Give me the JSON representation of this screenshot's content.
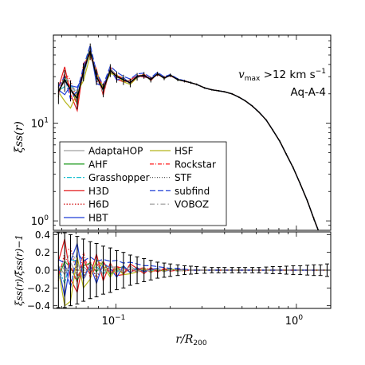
{
  "chart_data": [
    {
      "type": "line",
      "panel": "top",
      "annotation": {
        "prefix": "v",
        "sub": "max",
        "rest": " >12 km s",
        "sup": "−1",
        "name": "Aq-A-4"
      },
      "ylabel": "ξss(r)",
      "xscale": "log",
      "yscale": "log",
      "xlim": [
        0.045,
        1.55
      ],
      "ylim": [
        0.8,
        80
      ],
      "ytick_labels": [
        {
          "v": 10,
          "t": "10"
        },
        {
          "v": 1,
          "t": "10"
        }
      ],
      "ytick_exps": [
        "1",
        "0"
      ],
      "legend_position": "bottom-left",
      "x": [
        0.048,
        0.052,
        0.056,
        0.061,
        0.066,
        0.072,
        0.078,
        0.085,
        0.093,
        0.101,
        0.11,
        0.12,
        0.131,
        0.143,
        0.156,
        0.17,
        0.185,
        0.2,
        0.22,
        0.24,
        0.26,
        0.28,
        0.31,
        0.34,
        0.37,
        0.4,
        0.44,
        0.48,
        0.52,
        0.57,
        0.62,
        0.68,
        0.74,
        0.81,
        0.88,
        0.96,
        1.05,
        1.15,
        1.25,
        1.36,
        1.48
      ],
      "reference_y": [
        21,
        28,
        22,
        18,
        34,
        55,
        30,
        22,
        35,
        30,
        28,
        26,
        30,
        31,
        28,
        32,
        29,
        31,
        28,
        27,
        26,
        25,
        23,
        22,
        21.5,
        21,
        20,
        18.5,
        17,
        15,
        13,
        10.8,
        8.5,
        6.5,
        4.8,
        3.5,
        2.4,
        1.6,
        1.05,
        0.7,
        0.45
      ],
      "series": [
        {
          "name": "AdaptaHOP",
          "color": "#a0a0a0",
          "dash": "",
          "off": [
            0.05,
            -0.05,
            0.09,
            -0.07,
            0.04,
            -0.03,
            0.08,
            -0.05,
            0.03,
            0.04,
            -0.03,
            0.05,
            -0.02,
            0.03,
            -0.03,
            0.02,
            -0.02,
            0.02,
            -0.01,
            0.01
          ]
        },
        {
          "name": "AHF",
          "color": "#2ca02c",
          "dash": "",
          "off": [
            -0.08,
            0.1,
            0.03,
            -0.12,
            0.05,
            0.08,
            -0.02,
            0.1,
            -0.05,
            0.02,
            0.04,
            -0.03,
            0.02,
            -0.02,
            0.02,
            -0.01,
            0.01,
            0.01,
            -0.01,
            0
          ]
        },
        {
          "name": "Grasshopper",
          "color": "#17becf",
          "dash": "2,2,6,2",
          "off": [
            0.02,
            -0.15,
            0.12,
            0.1,
            -0.06,
            0.02,
            0.04,
            -0.04,
            0.05,
            -0.02,
            0.03,
            -0.02,
            0.01,
            0.02,
            -0.01,
            0.01,
            0,
            -0.01,
            0.01,
            0
          ]
        },
        {
          "name": "H3D",
          "color": "#e31a1c",
          "dash": "",
          "off": [
            0.1,
            0.35,
            -0.1,
            -0.25,
            0.12,
            -0.05,
            0.18,
            -0.12,
            0.08,
            -0.06,
            -0.05,
            0.07,
            0.02,
            -0.04,
            0.03,
            -0.02,
            0.02,
            -0.01,
            0,
            0.01
          ]
        },
        {
          "name": "H6D",
          "color": "#d62728",
          "dash": "1.5,2",
          "off": [
            -0.12,
            0.2,
            0.25,
            -0.05,
            -0.08,
            0.1,
            -0.1,
            0.06,
            -0.03,
            0.05,
            -0.04,
            0.02,
            -0.03,
            0.01,
            0.02,
            -0.02,
            0.01,
            0,
            0,
            -0.01
          ]
        },
        {
          "name": "HBT",
          "color": "#1f3fd6",
          "dash": "",
          "off": [
            0.05,
            -0.3,
            0.1,
            0.3,
            -0.1,
            0.06,
            -0.15,
            0.08,
            0.02,
            -0.08,
            0.05,
            -0.03,
            0.03,
            -0.02,
            0.01,
            0.02,
            -0.01,
            0,
            0.01,
            0
          ]
        },
        {
          "name": "HSF",
          "color": "#b5b51a",
          "dash": "",
          "off": [
            0,
            -0.4,
            -0.35,
            0.15,
            -0.2,
            -0.1,
            0.12,
            0.05,
            -0.08,
            0.03,
            -0.05,
            -0.04,
            -0.02,
            0.02,
            -0.02,
            0.01,
            -0.01,
            0.01,
            0,
            0
          ]
        },
        {
          "name": "Rockstar",
          "color": "#ff2a2a",
          "dash": "5,2,1,2",
          "off": [
            -0.05,
            0.15,
            0.05,
            -0.15,
            0.2,
            -0.08,
            0.05,
            0.1,
            -0.04,
            0.04,
            0.02,
            -0.02,
            0.01,
            0.03,
            -0.02,
            0,
            0.01,
            -0.01,
            0,
            0
          ]
        },
        {
          "name": "STF",
          "color": "#555555",
          "dash": "1,2",
          "off": [
            0.03,
            0.05,
            -0.05,
            0.05,
            -0.03,
            0.02,
            -0.06,
            0.03,
            -0.02,
            0.02,
            -0.03,
            0.01,
            0.02,
            -0.01,
            0.01,
            -0.01,
            0,
            0.01,
            0,
            0
          ]
        },
        {
          "name": "subfind",
          "color": "#1f3fd6",
          "dash": "7,3",
          "off": [
            0.12,
            0.08,
            -0.2,
            0.2,
            0.1,
            0.15,
            0.1,
            0.12,
            0.1,
            0.11,
            0.08,
            0.09,
            0.07,
            0.05,
            0.05,
            0.04,
            0.03,
            0.02,
            0.02,
            0.01
          ]
        },
        {
          "name": "VOBOZ",
          "color": "#aaaaaa",
          "dash": "6,3,1.5,3",
          "off": [
            -0.1,
            0.05,
            0.2,
            0.1,
            -0.12,
            0.05,
            0.03,
            -0.06,
            0.06,
            -0.03,
            0.02,
            0.03,
            -0.02,
            0.01,
            -0.01,
            0.01,
            0,
            0,
            -0.01,
            0
          ]
        }
      ]
    },
    {
      "type": "line",
      "panel": "bottom",
      "ylabel": "ξss(r)/ξ̄ss(r)−1",
      "xlabel_main": "r/R",
      "xlabel_sub": "200",
      "xscale": "log",
      "xlim": [
        0.045,
        1.55
      ],
      "ylim": [
        -0.43,
        0.43
      ],
      "ytick_labels": [
        "0.4",
        "0.2",
        "0.0",
        "−0.2",
        "−0.4"
      ],
      "ytick_values": [
        0.4,
        0.2,
        0.0,
        -0.2,
        -0.4
      ],
      "xtick_labels": [
        {
          "v": 0.1,
          "base": "10",
          "exp": "−1"
        },
        {
          "v": 1,
          "base": "10",
          "exp": "0"
        }
      ],
      "errorbar_halfwidth": [
        0.42,
        0.42,
        0.4,
        0.38,
        0.35,
        0.32,
        0.3,
        0.27,
        0.25,
        0.22,
        0.2,
        0.17,
        0.15,
        0.13,
        0.11,
        0.09,
        0.08,
        0.07,
        0.06,
        0.05,
        0.045,
        0.04,
        0.035,
        0.03,
        0.03,
        0.03,
        0.03,
        0.03,
        0.03,
        0.03,
        0.03,
        0.035,
        0.04,
        0.04,
        0.045,
        0.05,
        0.05,
        0.055,
        0.06,
        0.06,
        0.07
      ]
    }
  ]
}
